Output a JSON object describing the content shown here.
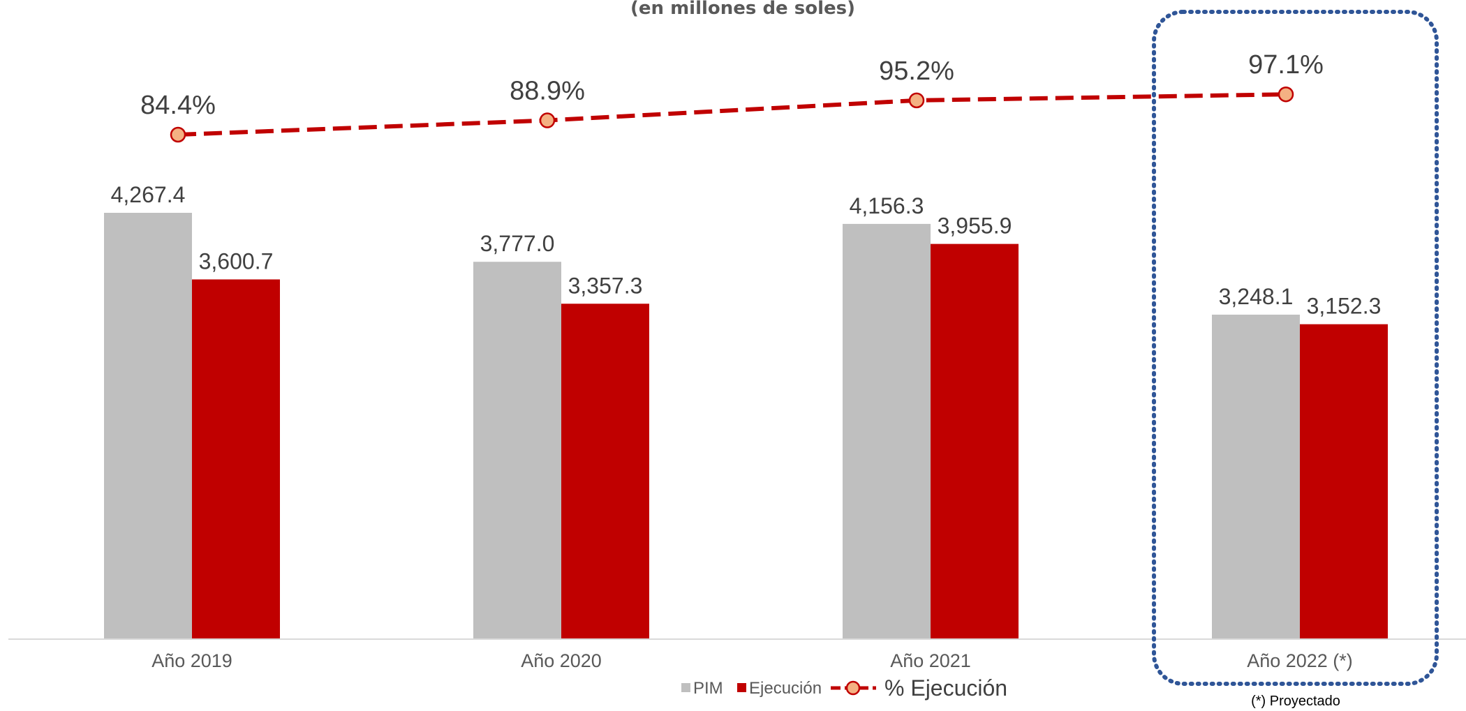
{
  "chart_data": {
    "type": "bar",
    "subtitle": "(en millones de soles)",
    "categories": [
      "Año 2019",
      "Año 2020",
      "Año 2021",
      "Año 2022 (*)"
    ],
    "series": [
      {
        "name": "PIM",
        "kind": "bar",
        "color": "#bfbfbf",
        "values": [
          4267.4,
          3777.0,
          4156.3,
          3248.1
        ],
        "labels": [
          "4,267.4",
          "3,777.0",
          "4,156.3",
          "3,248.1"
        ]
      },
      {
        "name": "Ejecución",
        "kind": "bar",
        "color": "#c00000",
        "values": [
          3600.7,
          3357.3,
          3955.9,
          3152.3
        ],
        "labels": [
          "3,600.7",
          "3,357.3",
          "3,955.9",
          "3,152.3"
        ]
      },
      {
        "name": "% Ejecución",
        "kind": "line",
        "style": "dashed",
        "color": "#c00000",
        "marker_color": "#f4b183",
        "values": [
          84.4,
          88.9,
          95.2,
          97.1
        ],
        "labels": [
          "84.4%",
          "88.9%",
          "95.2%",
          "97.1%"
        ]
      }
    ],
    "ylim": [
      0,
      4267.4
    ],
    "grid": false,
    "legend_position": "bottom",
    "highlight": {
      "category": "Año 2022 (*)",
      "style": "dotted-box",
      "color": "#2f5597"
    },
    "note": "(*) Proyectado"
  }
}
